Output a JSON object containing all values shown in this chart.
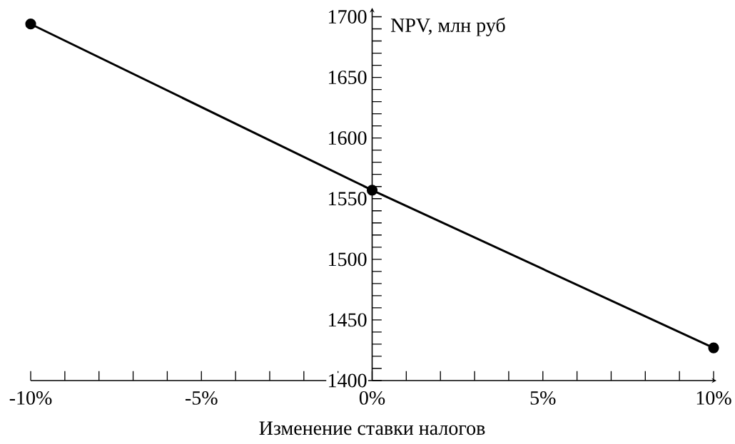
{
  "chart_data": {
    "type": "line",
    "xlabel": "Изменение ставки налогов",
    "ylabel": "NPV, млн руб",
    "x": [
      -10,
      0,
      10
    ],
    "series": [
      {
        "color": "#000000",
        "values": [
          1694,
          1557,
          1427
        ]
      }
    ],
    "xlim": [
      -10,
      10
    ],
    "ylim": [
      1400,
      1705
    ],
    "xticks": [
      {
        "value": -10,
        "label": "-10%"
      },
      {
        "value": -9,
        "label": null
      },
      {
        "value": -8,
        "label": null
      },
      {
        "value": -7,
        "label": null
      },
      {
        "value": -6,
        "label": null
      },
      {
        "value": -5,
        "label": "-5%"
      },
      {
        "value": -4,
        "label": null
      },
      {
        "value": -3,
        "label": null
      },
      {
        "value": -2,
        "label": null
      },
      {
        "value": -1,
        "label": null
      },
      {
        "value": 0,
        "label": "0%"
      },
      {
        "value": 1,
        "label": null
      },
      {
        "value": 2,
        "label": null
      },
      {
        "value": 3,
        "label": null
      },
      {
        "value": 4,
        "label": null
      },
      {
        "value": 5,
        "label": "5%"
      },
      {
        "value": 6,
        "label": null
      },
      {
        "value": 7,
        "label": null
      },
      {
        "value": 8,
        "label": null
      },
      {
        "value": 9,
        "label": null
      },
      {
        "value": 10,
        "label": "10%"
      }
    ],
    "yticks": [
      1400,
      {
        "value": 1410,
        "label": null
      },
      {
        "value": 1420,
        "label": null
      },
      {
        "value": 1430,
        "label": null
      },
      {
        "value": 1440,
        "label": null
      },
      1450,
      {
        "value": 1460,
        "label": null
      },
      {
        "value": 1470,
        "label": null
      },
      {
        "value": 1480,
        "label": null
      },
      {
        "value": 1490,
        "label": null
      },
      1500,
      {
        "value": 1510,
        "label": null
      },
      {
        "value": 1520,
        "label": null
      },
      {
        "value": 1530,
        "label": null
      },
      {
        "value": 1540,
        "label": null
      },
      1550,
      {
        "value": 1560,
        "label": null
      },
      {
        "value": 1570,
        "label": null
      },
      {
        "value": 1580,
        "label": null
      },
      {
        "value": 1590,
        "label": null
      },
      1600,
      {
        "value": 1610,
        "label": null
      },
      {
        "value": 1620,
        "label": null
      },
      {
        "value": 1630,
        "label": null
      },
      {
        "value": 1640,
        "label": null
      },
      1650,
      {
        "value": 1660,
        "label": null
      },
      {
        "value": 1670,
        "label": null
      },
      {
        "value": 1680,
        "label": null
      },
      {
        "value": 1690,
        "label": null
      },
      1700
    ],
    "marker": "circle",
    "line_style": "solid"
  }
}
